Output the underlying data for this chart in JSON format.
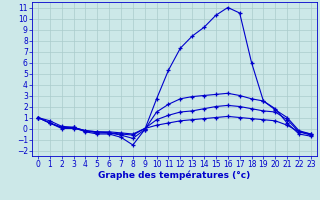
{
  "xlabel": "Graphe des températures (°c)",
  "xlim": [
    -0.5,
    23.5
  ],
  "ylim": [
    -2.5,
    11.5
  ],
  "x": [
    0,
    1,
    2,
    3,
    4,
    5,
    6,
    7,
    8,
    9,
    10,
    11,
    12,
    13,
    14,
    15,
    16,
    17,
    18,
    19,
    20,
    21,
    22,
    23
  ],
  "line1": [
    1.0,
    0.7,
    0.2,
    0.1,
    -0.3,
    -0.5,
    -0.5,
    -0.8,
    -1.5,
    -0.1,
    2.7,
    5.3,
    7.3,
    8.4,
    9.2,
    10.3,
    11.0,
    10.5,
    6.0,
    2.5,
    1.8,
    0.5,
    -0.5,
    -0.7
  ],
  "line2": [
    1.0,
    0.5,
    0.1,
    0.1,
    -0.2,
    -0.4,
    -0.4,
    -0.6,
    -0.9,
    -0.1,
    1.5,
    2.2,
    2.7,
    2.9,
    3.0,
    3.1,
    3.2,
    3.0,
    2.7,
    2.5,
    1.7,
    1.0,
    -0.2,
    -0.5
  ],
  "line3": [
    1.0,
    0.5,
    0.1,
    0.1,
    -0.2,
    -0.3,
    -0.4,
    -0.5,
    -0.6,
    0.0,
    0.8,
    1.2,
    1.5,
    1.6,
    1.8,
    2.0,
    2.1,
    2.0,
    1.8,
    1.6,
    1.5,
    0.8,
    -0.3,
    -0.6
  ],
  "line4": [
    1.0,
    0.5,
    0.0,
    0.0,
    -0.2,
    -0.3,
    -0.3,
    -0.4,
    -0.5,
    0.0,
    0.3,
    0.5,
    0.7,
    0.8,
    0.9,
    1.0,
    1.1,
    1.0,
    0.9,
    0.8,
    0.7,
    0.3,
    -0.3,
    -0.5
  ],
  "line_color": "#0000cc",
  "bg_color": "#cce8e8",
  "grid_color": "#aacccc",
  "yticks": [
    -2,
    -1,
    0,
    1,
    2,
    3,
    4,
    5,
    6,
    7,
    8,
    9,
    10,
    11
  ],
  "xticks": [
    0,
    1,
    2,
    3,
    4,
    5,
    6,
    7,
    8,
    9,
    10,
    11,
    12,
    13,
    14,
    15,
    16,
    17,
    18,
    19,
    20,
    21,
    22,
    23
  ],
  "tick_fontsize": 5.5,
  "xlabel_fontsize": 6.5
}
